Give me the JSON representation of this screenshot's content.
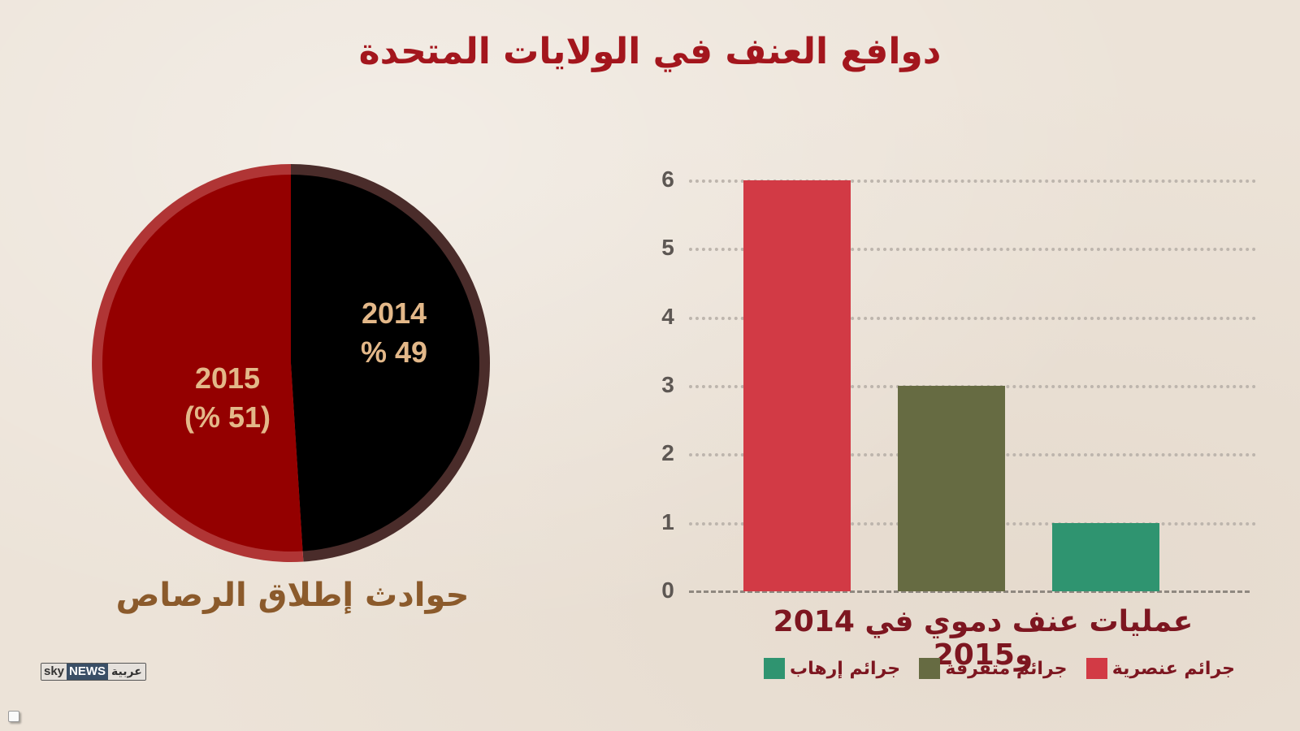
{
  "title": "دوافع العنف في الولايات المتحدة",
  "pie": {
    "caption": "حوادث إطلاق الرصاص",
    "slices": [
      {
        "year": "2015",
        "value_label": "(% 51)",
        "value": 51,
        "color": "#940000",
        "ring_color": "#b03535"
      },
      {
        "year": "2014",
        "value_label": "% 49",
        "value": 49,
        "color": "#000000",
        "ring_color": "#4a2c2a"
      }
    ]
  },
  "bar": {
    "caption": "عمليات عنف دموي في 2014 و2015",
    "y_ticks": [
      "0",
      "1",
      "2",
      "3",
      "4",
      "5",
      "6"
    ],
    "bars": [
      {
        "label": "جرائم عنصرية",
        "value": 6,
        "color": "#d23a45"
      },
      {
        "label": "جرائم متفرقة",
        "value": 3,
        "color": "#666b42"
      },
      {
        "label": "جرائم إرهاب",
        "value": 1,
        "color": "#2f9470"
      }
    ],
    "legend": [
      {
        "label": "جرائم إرهاب",
        "color": "#2f9470"
      },
      {
        "label": "جرائم متفرقة",
        "color": "#666b42"
      },
      {
        "label": "جرائم عنصرية",
        "color": "#d23a45"
      }
    ]
  },
  "logo": {
    "sky": "sky",
    "news": "NEWS",
    "arabic": "عربية"
  },
  "colors": {
    "title": "#a3161d",
    "pie_caption": "#8b5a2b",
    "bar_caption": "#7d1620",
    "pie_label": "#e3b889",
    "background": "#ece3d8"
  },
  "chart_data": [
    {
      "type": "pie",
      "title": "حوادث إطلاق الرصاص",
      "categories": [
        "2015",
        "2014"
      ],
      "values": [
        51,
        49
      ],
      "labels": [
        "2015 (% 51)",
        "2014 % 49"
      ],
      "colors": [
        "#940000",
        "#000000"
      ]
    },
    {
      "type": "bar",
      "title": "عمليات عنف دموي في 2014 و2015",
      "categories": [
        "جرائم عنصرية",
        "جرائم متفرقة",
        "جرائم إرهاب"
      ],
      "values": [
        6,
        3,
        1
      ],
      "colors": [
        "#d23a45",
        "#666b42",
        "#2f9470"
      ],
      "xlabel": "",
      "ylabel": "",
      "ylim": [
        0,
        6
      ],
      "y_ticks": [
        0,
        1,
        2,
        3,
        4,
        5,
        6
      ],
      "grid": true,
      "legend_position": "bottom"
    }
  ]
}
